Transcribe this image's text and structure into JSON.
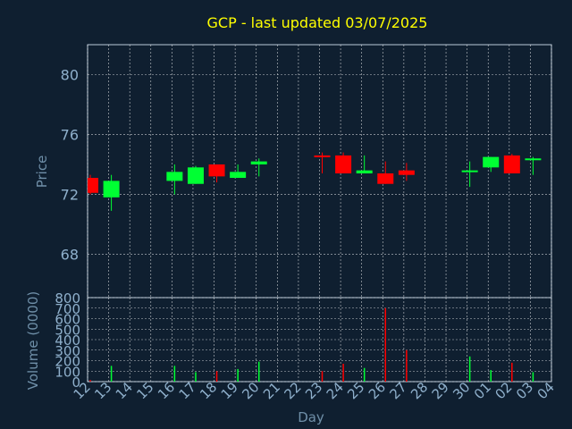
{
  "chart_data": {
    "type": "candlestick",
    "title": "GCP - last updated 03/07/2025",
    "xlabel": "Day",
    "x": [
      "12",
      "13",
      "14",
      "15",
      "16",
      "17",
      "18",
      "19",
      "20",
      "21",
      "22",
      "23",
      "24",
      "25",
      "26",
      "27",
      "28",
      "29",
      "30",
      "01",
      "02",
      "03",
      "04"
    ],
    "price": {
      "ylabel": "Price",
      "ylim": [
        65.1,
        82.0
      ],
      "yticks": [
        68,
        72,
        76,
        80
      ],
      "candles": [
        {
          "day": "12",
          "open": 73.1,
          "high": 73.3,
          "low": 72.0,
          "close": 72.1
        },
        {
          "day": "13",
          "open": 71.8,
          "high": 73.3,
          "low": 70.9,
          "close": 72.9
        },
        {
          "day": "16",
          "open": 72.9,
          "high": 74.0,
          "low": 72.0,
          "close": 73.5
        },
        {
          "day": "17",
          "open": 72.7,
          "high": 73.9,
          "low": 72.7,
          "close": 73.8
        },
        {
          "day": "18",
          "open": 74.0,
          "high": 74.0,
          "low": 72.8,
          "close": 73.2
        },
        {
          "day": "19",
          "open": 73.1,
          "high": 74.0,
          "low": 73.1,
          "close": 73.5
        },
        {
          "day": "20",
          "open": 74.0,
          "high": 74.4,
          "low": 73.2,
          "close": 74.2
        },
        {
          "day": "23",
          "open": 74.6,
          "high": 74.8,
          "low": 73.4,
          "close": 74.5
        },
        {
          "day": "24",
          "open": 74.6,
          "high": 74.8,
          "low": 73.4,
          "close": 73.4
        },
        {
          "day": "25",
          "open": 73.4,
          "high": 74.6,
          "low": 73.4,
          "close": 73.6
        },
        {
          "day": "26",
          "open": 73.4,
          "high": 74.2,
          "low": 72.7,
          "close": 72.7
        },
        {
          "day": "27",
          "open": 73.6,
          "high": 74.1,
          "low": 72.9,
          "close": 73.3
        },
        {
          "day": "30",
          "open": 73.5,
          "high": 74.2,
          "low": 72.5,
          "close": 73.6
        },
        {
          "day": "01",
          "open": 73.8,
          "high": 74.5,
          "low": 73.5,
          "close": 74.5
        },
        {
          "day": "02",
          "open": 74.6,
          "high": 74.7,
          "low": 73.4,
          "close": 73.4
        },
        {
          "day": "03",
          "open": 74.3,
          "high": 74.5,
          "low": 73.3,
          "close": 74.4
        }
      ]
    },
    "volume": {
      "ylabel": "Volume (0000)",
      "ylim": [
        0,
        800
      ],
      "yticks": [
        0,
        100,
        200,
        300,
        400,
        500,
        600,
        700,
        800
      ],
      "bars": [
        {
          "day": "12",
          "value": 15,
          "direction": "down"
        },
        {
          "day": "13",
          "value": 150,
          "direction": "up"
        },
        {
          "day": "16",
          "value": 150,
          "direction": "up"
        },
        {
          "day": "17",
          "value": 90,
          "direction": "up"
        },
        {
          "day": "18",
          "value": 100,
          "direction": "down"
        },
        {
          "day": "19",
          "value": 120,
          "direction": "up"
        },
        {
          "day": "20",
          "value": 190,
          "direction": "up"
        },
        {
          "day": "23",
          "value": 100,
          "direction": "down"
        },
        {
          "day": "24",
          "value": 170,
          "direction": "down"
        },
        {
          "day": "25",
          "value": 130,
          "direction": "up"
        },
        {
          "day": "26",
          "value": 700,
          "direction": "down"
        },
        {
          "day": "27",
          "value": 300,
          "direction": "down"
        },
        {
          "day": "30",
          "value": 240,
          "direction": "up"
        },
        {
          "day": "01",
          "value": 110,
          "direction": "up"
        },
        {
          "day": "02",
          "value": 180,
          "direction": "down"
        },
        {
          "day": "03",
          "value": 90,
          "direction": "up"
        }
      ]
    },
    "grid": true,
    "colors": {
      "background": "#0f1f30",
      "up": "#00ff33",
      "down": "#ff0000",
      "title": "#ffff00",
      "axis_text": "#8fb0cc",
      "axis_label": "#6f8fa8",
      "grid": "#ffffff",
      "axis": "#b8c8d8"
    }
  }
}
